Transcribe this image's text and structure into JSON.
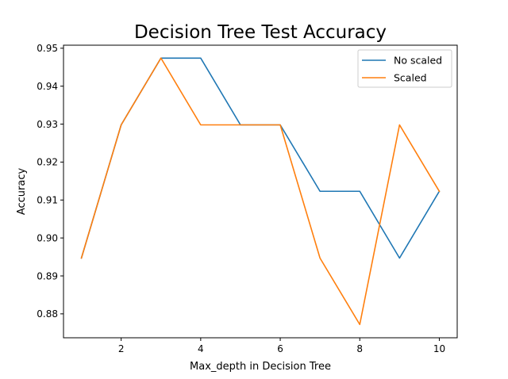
{
  "chart_data": {
    "type": "line",
    "title": "Decision Tree Test Accuracy",
    "xlabel": "Max_depth in Decision Tree",
    "ylabel": "Accuracy",
    "x": [
      1,
      2,
      3,
      4,
      5,
      6,
      7,
      8,
      9,
      10
    ],
    "xlim": [
      0.55,
      10.45
    ],
    "ylim": [
      0.8737,
      0.9508
    ],
    "xticks": [
      2,
      4,
      6,
      8,
      10
    ],
    "xtick_labels": [
      "2",
      "4",
      "6",
      "8",
      "10"
    ],
    "yticks": [
      0.88,
      0.89,
      0.9,
      0.91,
      0.92,
      0.93,
      0.94,
      0.95
    ],
    "ytick_labels": [
      "0.88",
      "0.89",
      "0.90",
      "0.91",
      "0.92",
      "0.93",
      "0.94",
      "0.95"
    ],
    "grid": false,
    "legend_position": "top-right",
    "series": [
      {
        "name": "No scaled",
        "color": "#1f77b4",
        "values": [
          0.8947,
          0.9298,
          0.9474,
          0.9474,
          0.9298,
          0.9298,
          0.9123,
          0.9123,
          0.8947,
          0.9123
        ]
      },
      {
        "name": "Scaled",
        "color": "#ff7f0e",
        "values": [
          0.8947,
          0.9298,
          0.9474,
          0.9298,
          0.9298,
          0.9298,
          0.8947,
          0.8772,
          0.9298,
          0.9123
        ]
      }
    ]
  }
}
